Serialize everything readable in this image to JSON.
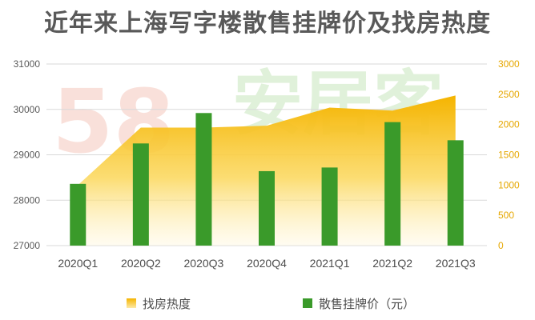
{
  "chart_data": {
    "type": "bar",
    "title": "近年来上海写字楼散售挂牌价及找房热度",
    "categories": [
      "2020Q1",
      "2020Q2",
      "2020Q3",
      "2020Q4",
      "2021Q1",
      "2021Q2",
      "2021Q3"
    ],
    "series": [
      {
        "name": "找房热度",
        "type": "area",
        "axis": "right",
        "values": [
          1000,
          1950,
          1950,
          1980,
          2280,
          2230,
          2480
        ],
        "color": "#f5b800"
      },
      {
        "name": "散售挂牌价（元）",
        "type": "bar",
        "axis": "left",
        "values": [
          28360,
          29250,
          29920,
          28640,
          28720,
          29720,
          29320
        ],
        "color": "#3a9a2a"
      }
    ],
    "y_left": {
      "range": [
        27000,
        31000
      ],
      "ticks": [
        27000,
        28000,
        29000,
        30000,
        31000
      ]
    },
    "y_right": {
      "range": [
        0,
        3000
      ],
      "ticks": [
        0,
        500,
        1000,
        1500,
        2000,
        2500,
        3000
      ],
      "color": "#e6a700"
    },
    "legend_placement": "bottom-center",
    "grid": true
  },
  "watermark": {
    "number": "58",
    "text": "安居客"
  }
}
